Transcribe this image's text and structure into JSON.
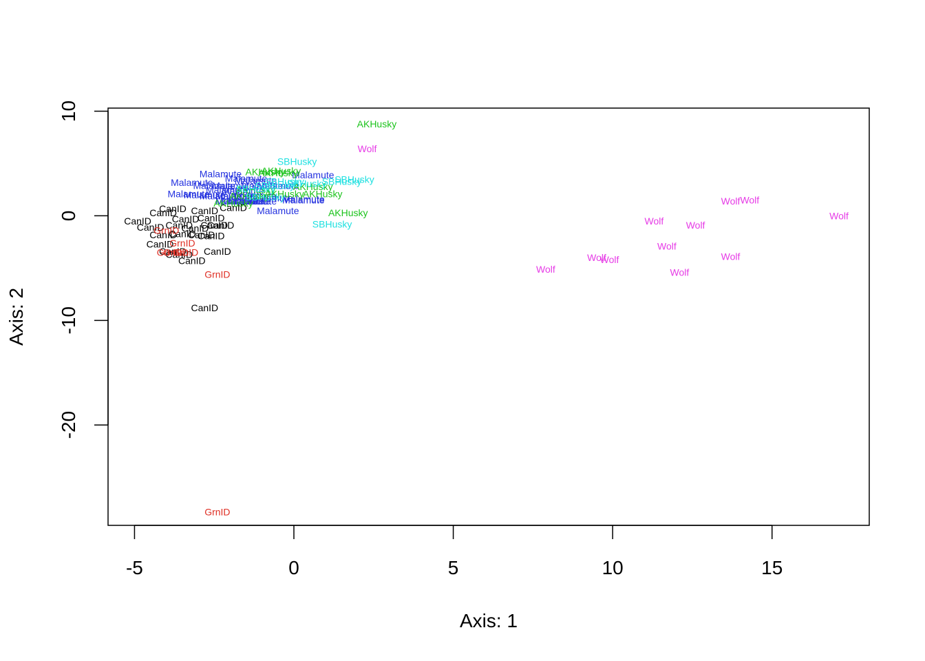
{
  "chart_data": {
    "type": "scatter",
    "title": "",
    "xlabel": "Axis: 1",
    "ylabel": "Axis: 2",
    "xlim": [
      -5.83,
      18.05
    ],
    "ylim": [
      -29.6,
      10.3
    ],
    "xticks": [
      -5,
      0,
      5,
      10,
      15
    ],
    "yticks": [
      -20,
      -10,
      0,
      10
    ],
    "grid": false,
    "legend": "none",
    "groups": [
      {
        "label": "CanID",
        "color": "#000000"
      },
      {
        "label": "GrnID",
        "color": "#df2f24"
      },
      {
        "label": "Malamute",
        "color": "#2432df"
      },
      {
        "label": "AKHusky",
        "color": "#1cc31c"
      },
      {
        "label": "SBHusky",
        "color": "#1fe0e0"
      },
      {
        "label": "Wolf",
        "color": "#e63be6"
      }
    ],
    "series": [
      {
        "label": "CanID",
        "points": [
          [
            -3.8,
            0.7
          ],
          [
            -4.1,
            0.3
          ],
          [
            -4.9,
            -0.5
          ],
          [
            -3.4,
            -0.3
          ],
          [
            -2.8,
            0.5
          ],
          [
            -2.6,
            -0.2
          ],
          [
            -4.5,
            -1.1
          ],
          [
            -3.6,
            -0.9
          ],
          [
            -2.5,
            -0.9
          ],
          [
            -3.1,
            -1.2
          ],
          [
            -2.3,
            -0.9
          ],
          [
            -4.1,
            -1.8
          ],
          [
            -3.5,
            -1.7
          ],
          [
            -2.9,
            -1.8
          ],
          [
            -2.6,
            -1.9
          ],
          [
            -4.2,
            -2.7
          ],
          [
            -3.8,
            -3.4
          ],
          [
            -3.6,
            -3.7
          ],
          [
            -3.2,
            -4.3
          ],
          [
            -2.4,
            -3.4
          ],
          [
            -1.9,
            0.8
          ],
          [
            -2.8,
            -8.8
          ]
        ]
      },
      {
        "label": "GrnID",
        "points": [
          [
            -3.5,
            -2.6
          ],
          [
            -3.9,
            -3.5
          ],
          [
            -3.7,
            -3.5
          ],
          [
            -3.4,
            -3.5
          ],
          [
            -4.0,
            -1.4
          ],
          [
            -2.4,
            -5.6
          ],
          [
            -2.4,
            -28.3
          ]
        ]
      },
      {
        "label": "Malamute",
        "points": [
          [
            -2.3,
            4.0
          ],
          [
            -1.5,
            3.6
          ],
          [
            -1.2,
            3.4
          ],
          [
            0.6,
            3.9
          ],
          [
            -3.2,
            3.2
          ],
          [
            -2.5,
            2.9
          ],
          [
            -1.9,
            2.9
          ],
          [
            -1.0,
            2.9
          ],
          [
            -0.5,
            2.9
          ],
          [
            -2.1,
            2.5
          ],
          [
            -1.6,
            2.4
          ],
          [
            -3.3,
            2.1
          ],
          [
            -2.8,
            2.0
          ],
          [
            -2.3,
            1.9
          ],
          [
            -1.8,
            1.9
          ],
          [
            -1.2,
            1.9
          ],
          [
            -0.7,
            1.7
          ],
          [
            0.3,
            1.6
          ],
          [
            -1.4,
            1.4
          ],
          [
            -1.8,
            1.4
          ],
          [
            -1.6,
            1.4
          ],
          [
            -1.2,
            1.4
          ],
          [
            0.3,
            1.5
          ],
          [
            -0.5,
            0.5
          ]
        ]
      },
      {
        "label": "AKHusky",
        "points": [
          [
            2.6,
            8.8
          ],
          [
            -0.9,
            4.2
          ],
          [
            -0.4,
            4.3
          ],
          [
            -0.5,
            4.1
          ],
          [
            -1.2,
            2.5
          ],
          [
            0.6,
            2.8
          ],
          [
            0.9,
            2.1
          ],
          [
            -1.4,
            1.9
          ],
          [
            -0.3,
            2.1
          ],
          [
            -1.9,
            1.2
          ],
          [
            1.7,
            0.3
          ]
        ]
      },
      {
        "label": "SBHusky",
        "points": [
          [
            0.1,
            5.2
          ],
          [
            1.9,
            3.5
          ],
          [
            1.5,
            3.3
          ],
          [
            -0.3,
            3.3
          ],
          [
            0.4,
            3.1
          ],
          [
            -0.6,
            2.9
          ],
          [
            -1.2,
            2.6
          ],
          [
            -0.9,
            1.8
          ],
          [
            1.2,
            -0.8
          ]
        ]
      },
      {
        "label": "Wolf",
        "points": [
          [
            2.3,
            6.4
          ],
          [
            7.9,
            -5.1
          ],
          [
            9.5,
            -4.0
          ],
          [
            9.9,
            -4.2
          ],
          [
            11.3,
            -0.5
          ],
          [
            11.7,
            -2.9
          ],
          [
            12.1,
            -5.4
          ],
          [
            12.6,
            -0.9
          ],
          [
            13.7,
            1.4
          ],
          [
            14.3,
            1.5
          ],
          [
            13.7,
            -3.9
          ],
          [
            17.1,
            0.0
          ]
        ]
      }
    ]
  }
}
